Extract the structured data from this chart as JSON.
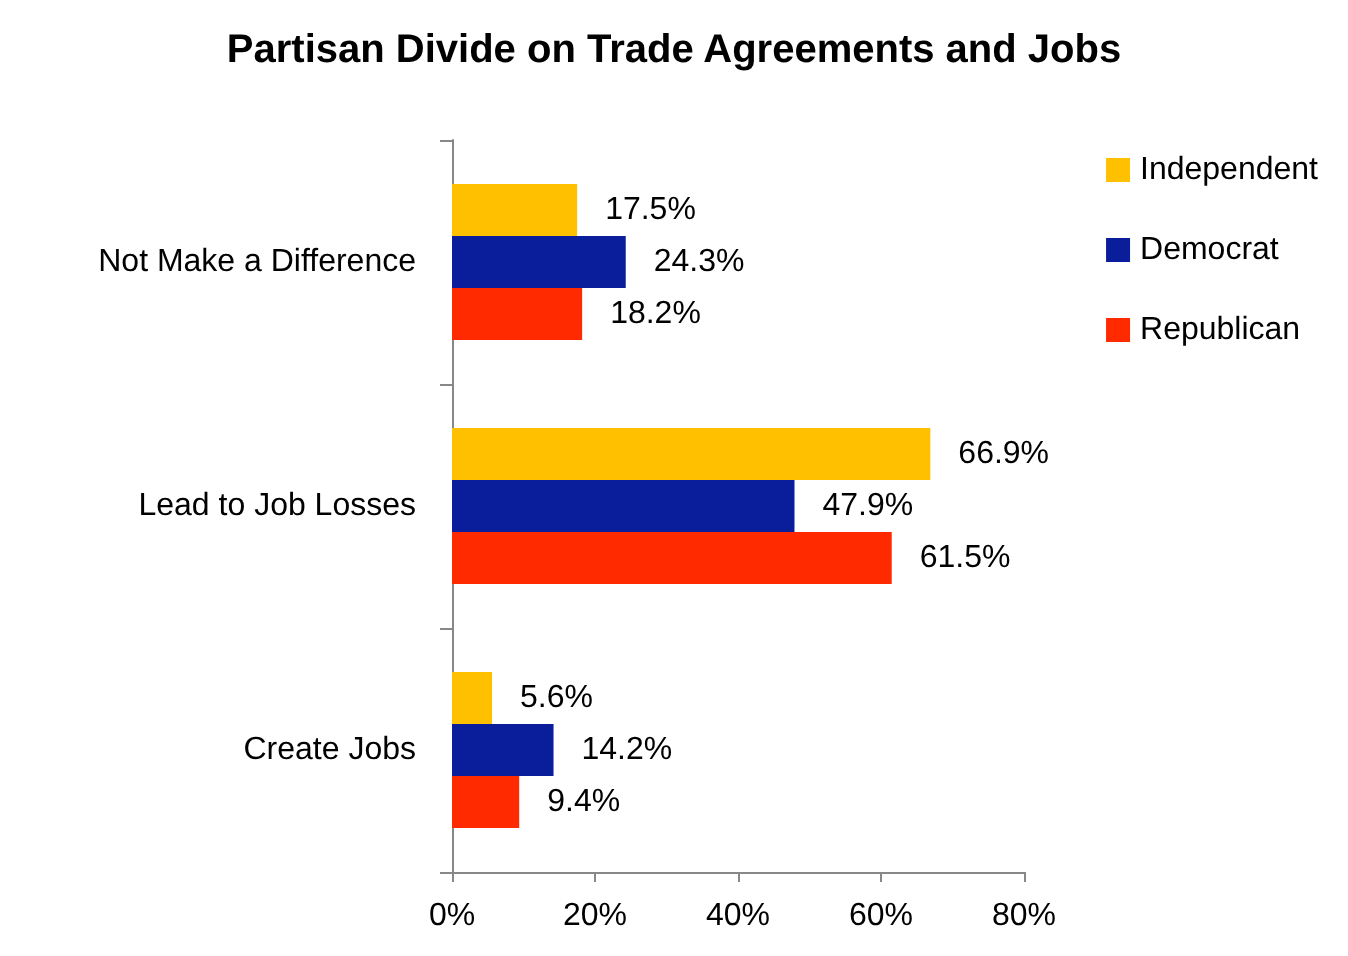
{
  "chart_data": {
    "type": "bar",
    "orientation": "horizontal",
    "title": "Partisan Divide on Trade Agreements and Jobs",
    "categories": [
      "Not Make a Difference",
      "Lead to Job Losses",
      "Create Jobs"
    ],
    "series": [
      {
        "name": "Independent",
        "color": "#ffc000",
        "values": [
          17.5,
          66.9,
          5.6
        ],
        "value_labels": [
          "17.5%",
          "66.9%",
          "5.6%"
        ]
      },
      {
        "name": "Democrat",
        "color": "#0a1e9c",
        "values": [
          24.3,
          47.9,
          14.2
        ],
        "value_labels": [
          "24.3%",
          "47.9%",
          "14.2%"
        ]
      },
      {
        "name": "Republican",
        "color": "#ff2a00",
        "values": [
          18.2,
          61.5,
          9.4
        ],
        "value_labels": [
          "18.2%",
          "61.5%",
          "9.4%"
        ]
      }
    ],
    "xlim": [
      0,
      80
    ],
    "xticks": [
      {
        "value": 0,
        "label": "0%"
      },
      {
        "value": 20,
        "label": "20%"
      },
      {
        "value": 40,
        "label": "40%"
      },
      {
        "value": 60,
        "label": "60%"
      },
      {
        "value": 80,
        "label": "80%"
      }
    ],
    "grid": false,
    "legend": "right"
  }
}
